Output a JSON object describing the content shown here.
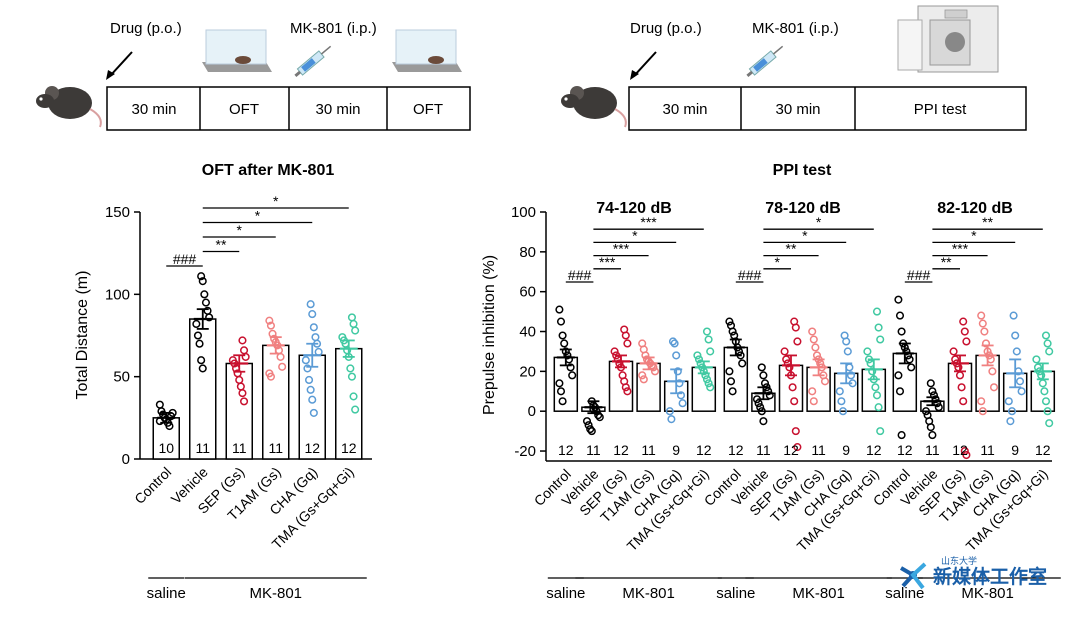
{
  "header": {
    "left_schedule": {
      "drug_label": "Drug (p.o.)",
      "mk_label": "MK-801 (i.p.)",
      "boxes": [
        "30 min",
        "OFT",
        "30 min",
        "OFT"
      ]
    },
    "right_schedule": {
      "drug_label": "Drug (p.o.)",
      "mk_label": "MK-801 (i.p.)",
      "boxes": [
        "30 min",
        "30 min",
        "PPI test"
      ]
    }
  },
  "colors": {
    "control": "#000000",
    "vehicle": "#000000",
    "sep": "#c8102e",
    "t1am": "#f08080",
    "cha": "#5b9bd5",
    "tma": "#40c9a2"
  },
  "watermark": {
    "cn": "新媒体工作室",
    "top": "山东大学"
  },
  "chart_data": [
    {
      "type": "bar",
      "title": "OFT after MK-801",
      "ylabel": "Total Distance (m)",
      "ylim": [
        0,
        150
      ],
      "yticks": [
        0,
        50,
        100,
        150
      ],
      "categories": [
        "Control",
        "Vehicle",
        "SEP (Gs)",
        "T1AM (Gs)",
        "CHA (Gq)",
        "TMA (Gs+Gq+Gi)"
      ],
      "values": [
        25,
        85,
        58,
        69,
        63,
        67
      ],
      "errors": [
        3,
        6,
        5,
        5,
        7,
        5
      ],
      "n": [
        "10",
        "11",
        "11",
        "11",
        "12",
        "12"
      ],
      "points": [
        [
          33,
          29,
          27,
          25,
          24,
          22,
          20,
          26,
          28,
          23
        ],
        [
          111,
          108,
          100,
          95,
          90,
          86,
          82,
          75,
          70,
          60,
          55
        ],
        [
          72,
          66,
          62,
          60,
          58,
          55,
          52,
          48,
          44,
          40,
          35
        ],
        [
          84,
          81,
          76,
          73,
          71,
          69,
          66,
          62,
          56,
          52,
          50
        ],
        [
          94,
          88,
          80,
          74,
          70,
          65,
          60,
          55,
          48,
          42,
          36,
          28
        ],
        [
          86,
          82,
          78,
          74,
          72,
          70,
          66,
          62,
          55,
          50,
          38,
          30
        ]
      ],
      "significance": [
        {
          "label": "###",
          "from": 0,
          "to": 1
        },
        {
          "label": "**",
          "from": 1,
          "to": 2
        },
        {
          "label": "*",
          "from": 1,
          "to": 3
        },
        {
          "label": "*",
          "from": 1,
          "to": 4
        },
        {
          "label": "*",
          "from": 1,
          "to": 5
        }
      ],
      "groups": [
        {
          "label": "saline",
          "from": 0,
          "to": 0
        },
        {
          "label": "MK-801",
          "from": 1,
          "to": 5
        }
      ]
    },
    {
      "type": "bar",
      "title": "PPI test",
      "ylabel": "Prepulse inhibition (%)",
      "ylim": [
        -25,
        100
      ],
      "yticks": [
        -20,
        0,
        20,
        40,
        60,
        80,
        100
      ],
      "panels": [
        {
          "subtitle": "74-120 dB",
          "categories": [
            "Control",
            "Vehicle",
            "SEP (Gs)",
            "T1AM (Gs)",
            "CHA (Gq)",
            "TMA (Gs+Gq+Gi)"
          ],
          "values": [
            27,
            2,
            25,
            24,
            15,
            22
          ],
          "errors": [
            4,
            3,
            3,
            3,
            6,
            3
          ],
          "n": [
            "12",
            "11",
            "12",
            "11",
            "9",
            "12"
          ],
          "points": [
            [
              51,
              45,
              38,
              34,
              30,
              28,
              26,
              22,
              18,
              14,
              10,
              5
            ],
            [
              5,
              3,
              2,
              0,
              -2,
              -3,
              -5,
              -7,
              -9,
              -10,
              1
            ],
            [
              41,
              38,
              34,
              30,
              28,
              26,
              24,
              22,
              18,
              15,
              12,
              10
            ],
            [
              34,
              31,
              28,
              26,
              25,
              24,
              23,
              22,
              20,
              18,
              16
            ],
            [
              34,
              28,
              20,
              14,
              8,
              4,
              0,
              -4,
              35
            ],
            [
              40,
              36,
              30,
              28,
              26,
              24,
              22,
              20,
              18,
              16,
              14,
              12
            ]
          ],
          "significance": [
            {
              "label": "###",
              "from": 0,
              "to": 1
            },
            {
              "label": "***",
              "from": 1,
              "to": 2
            },
            {
              "label": "***",
              "from": 1,
              "to": 3
            },
            {
              "label": "*",
              "from": 1,
              "to": 4
            },
            {
              "label": "***",
              "from": 1,
              "to": 5
            }
          ]
        },
        {
          "subtitle": "78-120 dB",
          "categories": [
            "Control",
            "Vehicle",
            "SEP (Gs)",
            "T1AM (Gs)",
            "CHA (Gq)",
            "TMA (Gs+Gq+Gi)"
          ],
          "values": [
            32,
            9,
            23,
            22,
            19,
            21
          ],
          "errors": [
            4,
            3,
            5,
            4,
            5,
            5
          ],
          "n": [
            "12",
            "11",
            "12",
            "11",
            "9",
            "12"
          ],
          "points": [
            [
              45,
              43,
              40,
              38,
              35,
              32,
              30,
              28,
              24,
              20,
              15,
              10
            ],
            [
              22,
              18,
              14,
              12,
              10,
              8,
              6,
              4,
              2,
              0,
              -5
            ],
            [
              45,
              42,
              35,
              30,
              26,
              24,
              22,
              18,
              12,
              5,
              -10,
              -18
            ],
            [
              40,
              36,
              32,
              28,
              26,
              24,
              22,
              18,
              15,
              10,
              5
            ],
            [
              38,
              35,
              30,
              22,
              18,
              14,
              10,
              5,
              0
            ],
            [
              50,
              42,
              36,
              30,
              26,
              24,
              20,
              16,
              12,
              8,
              2,
              -10
            ]
          ],
          "significance": [
            {
              "label": "###",
              "from": 0,
              "to": 1
            },
            {
              "label": "*",
              "from": 1,
              "to": 2
            },
            {
              "label": "**",
              "from": 1,
              "to": 3
            },
            {
              "label": "*",
              "from": 1,
              "to": 4
            },
            {
              "label": "*",
              "from": 1,
              "to": 5
            }
          ]
        },
        {
          "subtitle": "82-120 dB",
          "categories": [
            "Control",
            "Vehicle",
            "SEP (Gs)",
            "T1AM (Gs)",
            "CHA (Gq)",
            "TMA (Gs+Gq+Gi)"
          ],
          "values": [
            29,
            5,
            24,
            28,
            19,
            20
          ],
          "errors": [
            5,
            2,
            4,
            5,
            7,
            4
          ],
          "n": [
            "12",
            "11",
            "12",
            "11",
            "9",
            "12"
          ],
          "points": [
            [
              56,
              48,
              40,
              34,
              32,
              30,
              28,
              26,
              22,
              18,
              10,
              -12
            ],
            [
              14,
              10,
              8,
              6,
              4,
              2,
              0,
              -2,
              -5,
              -8,
              -12
            ],
            [
              45,
              40,
              35,
              30,
              26,
              24,
              22,
              18,
              12,
              5,
              -20,
              -22
            ],
            [
              48,
              44,
              40,
              34,
              30,
              28,
              26,
              20,
              12,
              5,
              0
            ],
            [
              48,
              38,
              30,
              20,
              15,
              10,
              5,
              -5,
              0
            ],
            [
              38,
              34,
              30,
              26,
              22,
              20,
              18,
              14,
              10,
              5,
              0,
              -6
            ]
          ],
          "significance": [
            {
              "label": "###",
              "from": 0,
              "to": 1
            },
            {
              "label": "**",
              "from": 1,
              "to": 2
            },
            {
              "label": "***",
              "from": 1,
              "to": 3
            },
            {
              "label": "*",
              "from": 1,
              "to": 4
            },
            {
              "label": "**",
              "from": 1,
              "to": 5
            }
          ]
        }
      ],
      "groups": [
        {
          "label": "saline",
          "from": 0,
          "to": 0
        },
        {
          "label": "MK-801",
          "from": 1,
          "to": 5
        }
      ]
    }
  ]
}
